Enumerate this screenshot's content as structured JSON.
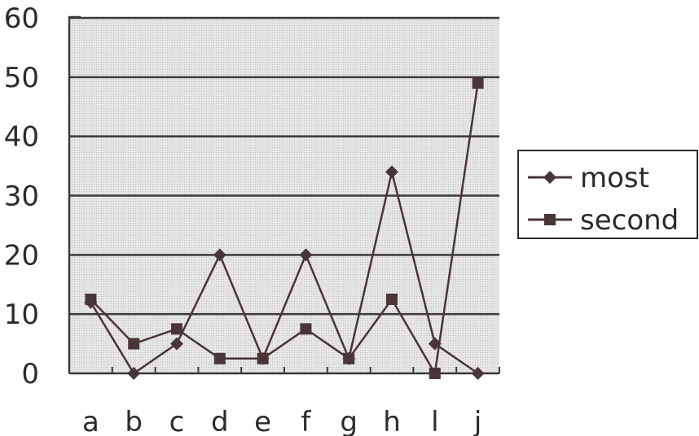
{
  "chart_data": {
    "type": "line",
    "categories": [
      "a",
      "b",
      "c",
      "d",
      "e",
      "f",
      "g",
      "h",
      "l",
      "j"
    ],
    "series": [
      {
        "name": "most",
        "marker": "diamond",
        "values": [
          12,
          0,
          5,
          20,
          2.5,
          20,
          2.5,
          34,
          5,
          0
        ]
      },
      {
        "name": "second",
        "marker": "square",
        "values": [
          12.5,
          5,
          7.5,
          2.5,
          2.5,
          7.5,
          2.5,
          12.5,
          0,
          49
        ]
      }
    ],
    "y_ticks": [
      "0",
      "10",
      "20",
      "30",
      "40",
      "50",
      "60"
    ],
    "ylim": [
      0,
      60
    ],
    "grid": true,
    "legend_position": "right",
    "colors": {
      "line": "#4a3538",
      "grid": "#3a3a3a",
      "plot_bg": "#e2e2e2",
      "text": "#2b2b2b"
    }
  }
}
